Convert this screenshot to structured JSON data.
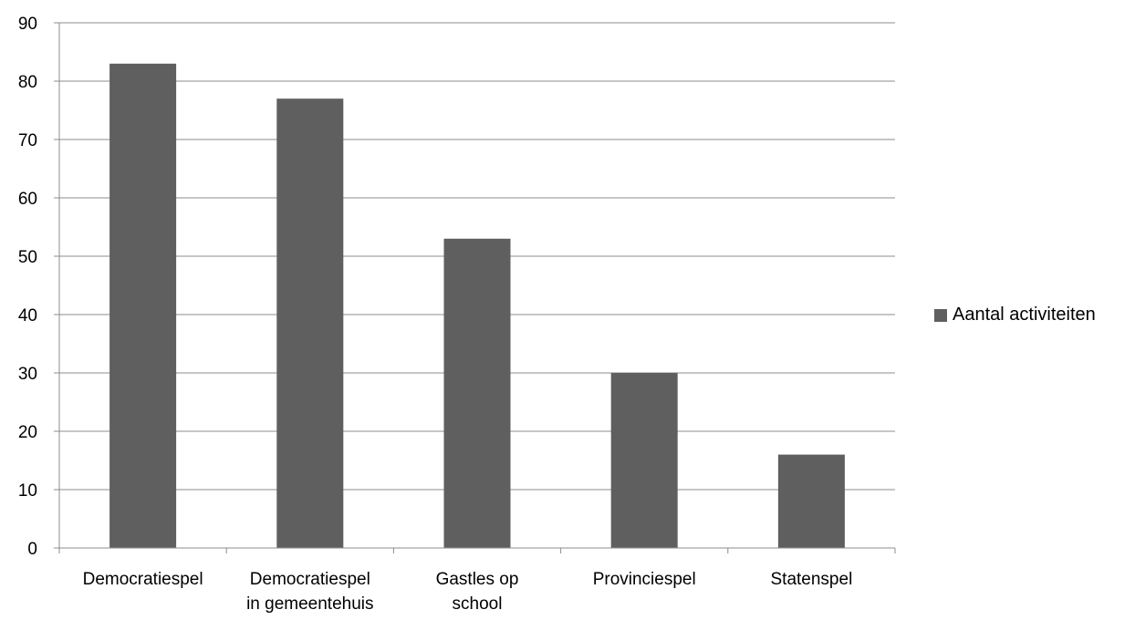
{
  "chart_data": {
    "type": "bar",
    "categories": [
      [
        "Democratiespel"
      ],
      [
        "Democratiespel",
        "in gemeentehuis"
      ],
      [
        "Gastles op",
        "school"
      ],
      [
        "Provinciespel"
      ],
      [
        "Statenspel"
      ]
    ],
    "series": [
      {
        "name": "Aantal activiteiten",
        "values": [
          83,
          77,
          53,
          30,
          16
        ]
      }
    ],
    "ylim": [
      0,
      90
    ],
    "yticks": [
      0,
      10,
      20,
      30,
      40,
      50,
      60,
      70,
      80,
      90
    ],
    "grid": true,
    "legend_position": "right",
    "bar_color": "#5f5f5f",
    "gridline_color": "#8c8c8c",
    "axis_color": "#8c8c8c"
  }
}
